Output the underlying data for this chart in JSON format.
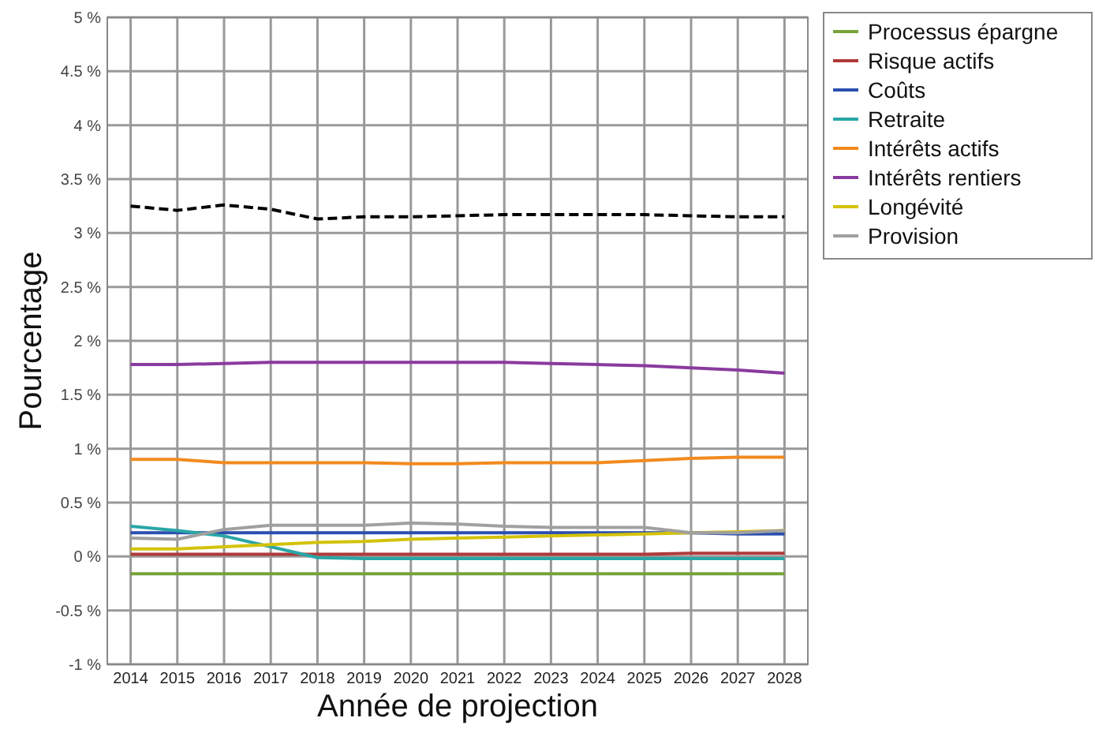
{
  "chart_data": {
    "type": "line",
    "xlabel": "Année de projection",
    "ylabel": "Pourcentage",
    "categories": [
      "2014",
      "2015",
      "2016",
      "2017",
      "2018",
      "2019",
      "2020",
      "2021",
      "2022",
      "2023",
      "2024",
      "2025",
      "2026",
      "2027",
      "2028"
    ],
    "ylim": [
      -1,
      5
    ],
    "yticks": [
      {
        "value": -1,
        "label": "-1 %"
      },
      {
        "value": -0.5,
        "label": "-0.5 %"
      },
      {
        "value": 0,
        "label": "0 %"
      },
      {
        "value": 0.5,
        "label": "0.5 %"
      },
      {
        "value": 1,
        "label": "1 %"
      },
      {
        "value": 1.5,
        "label": "1.5 %"
      },
      {
        "value": 2,
        "label": "2 %"
      },
      {
        "value": 2.5,
        "label": "2.5 %"
      },
      {
        "value": 3,
        "label": "3 %"
      },
      {
        "value": 3.5,
        "label": "3.5 %"
      },
      {
        "value": 4,
        "label": "4 %"
      },
      {
        "value": 4.5,
        "label": "4.5 %"
      },
      {
        "value": 5,
        "label": "5 %"
      }
    ],
    "grid": true,
    "legend": "top right",
    "marker": "none",
    "series": [
      {
        "name": "Processus épargne",
        "color": "#77a33a",
        "values": [
          -0.16,
          -0.16,
          -0.16,
          -0.16,
          -0.16,
          -0.16,
          -0.16,
          -0.16,
          -0.16,
          -0.16,
          -0.16,
          -0.16,
          -0.16,
          -0.16,
          -0.16
        ]
      },
      {
        "name": "Risque actifs",
        "color": "#b03a3a",
        "values": [
          0.02,
          0.02,
          0.02,
          0.02,
          0.02,
          0.02,
          0.02,
          0.02,
          0.02,
          0.02,
          0.02,
          0.02,
          0.03,
          0.03,
          0.03
        ]
      },
      {
        "name": "Coûts",
        "color": "#2b4fb0",
        "values": [
          0.22,
          0.22,
          0.22,
          0.22,
          0.22,
          0.22,
          0.22,
          0.22,
          0.22,
          0.22,
          0.22,
          0.22,
          0.22,
          0.21,
          0.21
        ]
      },
      {
        "name": "Retraite",
        "color": "#2aa6a6",
        "values": [
          0.28,
          0.24,
          0.19,
          0.09,
          -0.01,
          -0.02,
          -0.02,
          -0.02,
          -0.02,
          -0.02,
          -0.02,
          -0.02,
          -0.02,
          -0.02,
          -0.02
        ]
      },
      {
        "name": "Intérêts actifs",
        "color": "#f28a1e",
        "values": [
          0.9,
          0.9,
          0.87,
          0.87,
          0.87,
          0.87,
          0.86,
          0.86,
          0.87,
          0.87,
          0.87,
          0.89,
          0.91,
          0.92,
          0.92
        ]
      },
      {
        "name": "Intérêts rentiers",
        "color": "#8a3a9e",
        "values": [
          1.78,
          1.78,
          1.79,
          1.8,
          1.8,
          1.8,
          1.8,
          1.8,
          1.8,
          1.79,
          1.78,
          1.77,
          1.75,
          1.73,
          1.7
        ]
      },
      {
        "name": "Longévité",
        "color": "#d4c20a",
        "values": [
          0.07,
          0.07,
          0.09,
          0.11,
          0.13,
          0.14,
          0.16,
          0.17,
          0.18,
          0.19,
          0.2,
          0.21,
          0.22,
          0.23,
          0.24
        ]
      },
      {
        "name": "Provision",
        "color": "#a0a0a0",
        "values": [
          0.17,
          0.16,
          0.25,
          0.29,
          0.29,
          0.29,
          0.31,
          0.3,
          0.28,
          0.27,
          0.27,
          0.27,
          0.22,
          0.22,
          0.24
        ]
      },
      {
        "color": "#000000",
        "line_style": "dashed",
        "values": [
          3.25,
          3.21,
          3.26,
          3.22,
          3.13,
          3.15,
          3.15,
          3.16,
          3.17,
          3.17,
          3.17,
          3.17,
          3.16,
          3.15,
          3.15
        ]
      }
    ]
  }
}
